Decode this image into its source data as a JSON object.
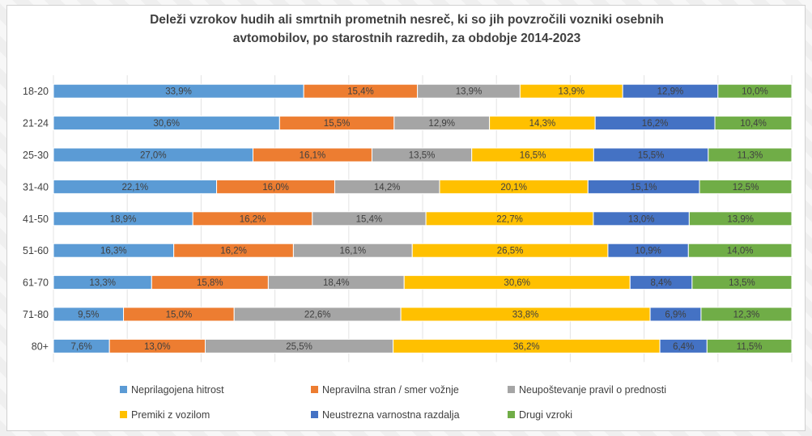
{
  "chart_data": {
    "type": "bar",
    "orientation": "horizontal",
    "stacked": "percent",
    "title_line1": "Deleži vzrokov hudih ali smrtnih prometnih nesreč, ki so jih povzročili vozniki osebnih",
    "title_line2": "avtomobilov, po starostnih razredih, za obdobje 2014-2023",
    "categories": [
      "18-20",
      "21-24",
      "25-30",
      "31-40",
      "41-50",
      "51-60",
      "61-70",
      "71-80",
      "80+"
    ],
    "series": [
      {
        "name": "Neprilagojena hitrost",
        "color": "#5b9bd5",
        "values": [
          33.9,
          30.6,
          27.0,
          22.1,
          18.9,
          16.3,
          13.3,
          9.5,
          7.6
        ],
        "labels": [
          "33,9%",
          "30,6%",
          "27,0%",
          "22,1%",
          "18,9%",
          "16,3%",
          "13,3%",
          "9,5%",
          "7,6%"
        ]
      },
      {
        "name": "Nepravilna stran / smer vožnje",
        "color": "#ed7d31",
        "values": [
          15.4,
          15.5,
          16.1,
          16.0,
          16.2,
          16.2,
          15.8,
          15.0,
          13.0
        ],
        "labels": [
          "15,4%",
          "15,5%",
          "16,1%",
          "16,0%",
          "16,2%",
          "16,2%",
          "15,8%",
          "15,0%",
          "13,0%"
        ]
      },
      {
        "name": "Neupoštevanje pravil o prednosti",
        "color": "#a5a5a5",
        "values": [
          13.9,
          12.9,
          13.5,
          14.2,
          15.4,
          16.1,
          18.4,
          22.6,
          25.5
        ],
        "labels": [
          "13,9%",
          "12,9%",
          "13,5%",
          "14,2%",
          "15,4%",
          "16,1%",
          "18,4%",
          "22,6%",
          "25,5%"
        ]
      },
      {
        "name": "Premiki z vozilom",
        "color": "#ffc000",
        "values": [
          13.9,
          14.3,
          16.5,
          20.1,
          22.7,
          26.5,
          30.6,
          33.8,
          36.2
        ],
        "labels": [
          "13,9%",
          "14,3%",
          "16,5%",
          "20,1%",
          "22,7%",
          "26,5%",
          "30,6%",
          "33,8%",
          "36,2%"
        ]
      },
      {
        "name": "Neustrezna varnostna razdalja",
        "color": "#4472c4",
        "values": [
          12.9,
          16.2,
          15.5,
          15.1,
          13.0,
          10.9,
          8.4,
          6.9,
          6.4
        ],
        "labels": [
          "12,9%",
          "16,2%",
          "15,5%",
          "15,1%",
          "13,0%",
          "10,9%",
          "8,4%",
          "6,9%",
          "6,4%"
        ]
      },
      {
        "name": "Drugi vzroki",
        "color": "#70ad47",
        "values": [
          10.0,
          10.4,
          11.3,
          12.5,
          13.9,
          14.0,
          13.5,
          12.3,
          11.5
        ],
        "labels": [
          "10,0%",
          "10,4%",
          "11,3%",
          "12,5%",
          "13,9%",
          "14,0%",
          "13,5%",
          "12,3%",
          "11,5%"
        ]
      }
    ],
    "xlim": [
      0,
      100
    ],
    "grid": "vertical",
    "legend_position": "bottom"
  }
}
